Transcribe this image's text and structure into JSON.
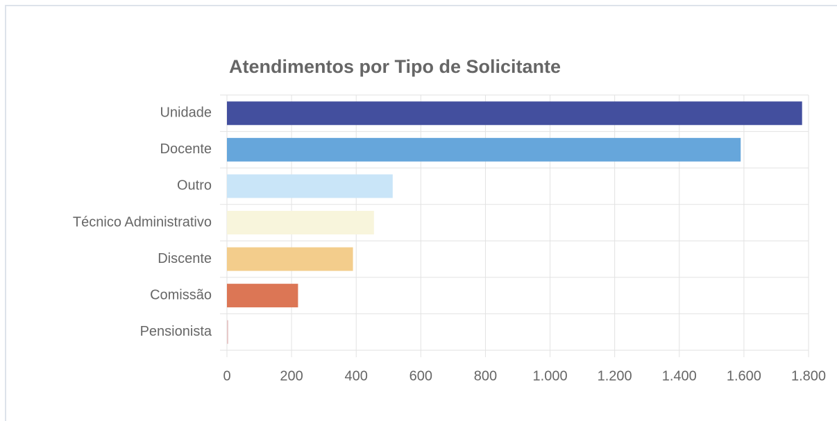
{
  "chart_data": {
    "type": "bar",
    "orientation": "horizontal",
    "title": "Atendimentos por Tipo de Solicitante",
    "categories": [
      "Unidade",
      "Docente",
      "Outro",
      "Técnico Administrativo",
      "Discente",
      "Comissão",
      "Pensionista"
    ],
    "values": [
      1780,
      1590,
      513,
      455,
      390,
      220,
      4
    ],
    "colors": [
      "#434f9e",
      "#66a6db",
      "#c9e5f8",
      "#f8f5dc",
      "#f3cd8c",
      "#dc7655",
      "#e6c6c6"
    ],
    "xlim": [
      0,
      1800
    ],
    "xticks": [
      0,
      200,
      400,
      600,
      800,
      {
        "value": 1000,
        "label": "1.000"
      },
      {
        "value": 1200,
        "label": "1.200"
      },
      {
        "value": 1400,
        "label": "1.400"
      },
      {
        "value": 1600,
        "label": "1.600"
      },
      {
        "value": 1800,
        "label": "1.800"
      }
    ],
    "grid": true
  }
}
